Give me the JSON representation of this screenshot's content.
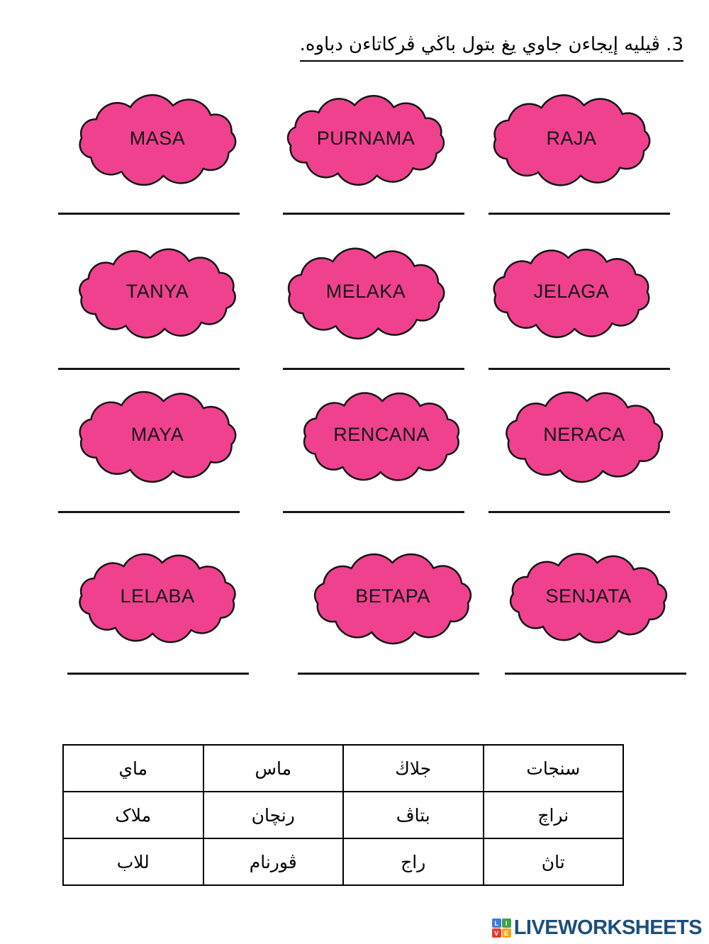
{
  "header": {
    "instruction": "3. ڤيليه إيجاءن جاوي يغ بتول باڬي ڤركاتاءن دباوه."
  },
  "clouds": {
    "rows": [
      [
        "MASA",
        "PURNAMA",
        "RAJA"
      ],
      [
        "TANYA",
        "MELAKA",
        "JELAGA"
      ],
      [
        "MAYA",
        "RENCANA",
        "NERACA"
      ],
      [
        "LELABA",
        "BETAPA",
        "SENJATA"
      ]
    ]
  },
  "table": {
    "rows": [
      [
        "ماي",
        "ماس",
        "جلاڬ",
        "سنجات"
      ],
      [
        "ملاک",
        "رنچان",
        "بتاڤ",
        "نراچ"
      ],
      [
        "للاب",
        "ڤورنام",
        "راج",
        "تاڽ"
      ]
    ]
  },
  "footer": {
    "brand": "LIVEWORKSHEETS",
    "logo_letters": [
      "L",
      "I",
      "V",
      "E"
    ]
  },
  "colors": {
    "cloud_fill": "#F0418F",
    "cloud_stroke": "#141414",
    "brand_navy": "#1D4E7E",
    "logo_square_colors": [
      "#3B7CD8",
      "#3FA14C",
      "#E23B34",
      "#F4A71D"
    ]
  }
}
